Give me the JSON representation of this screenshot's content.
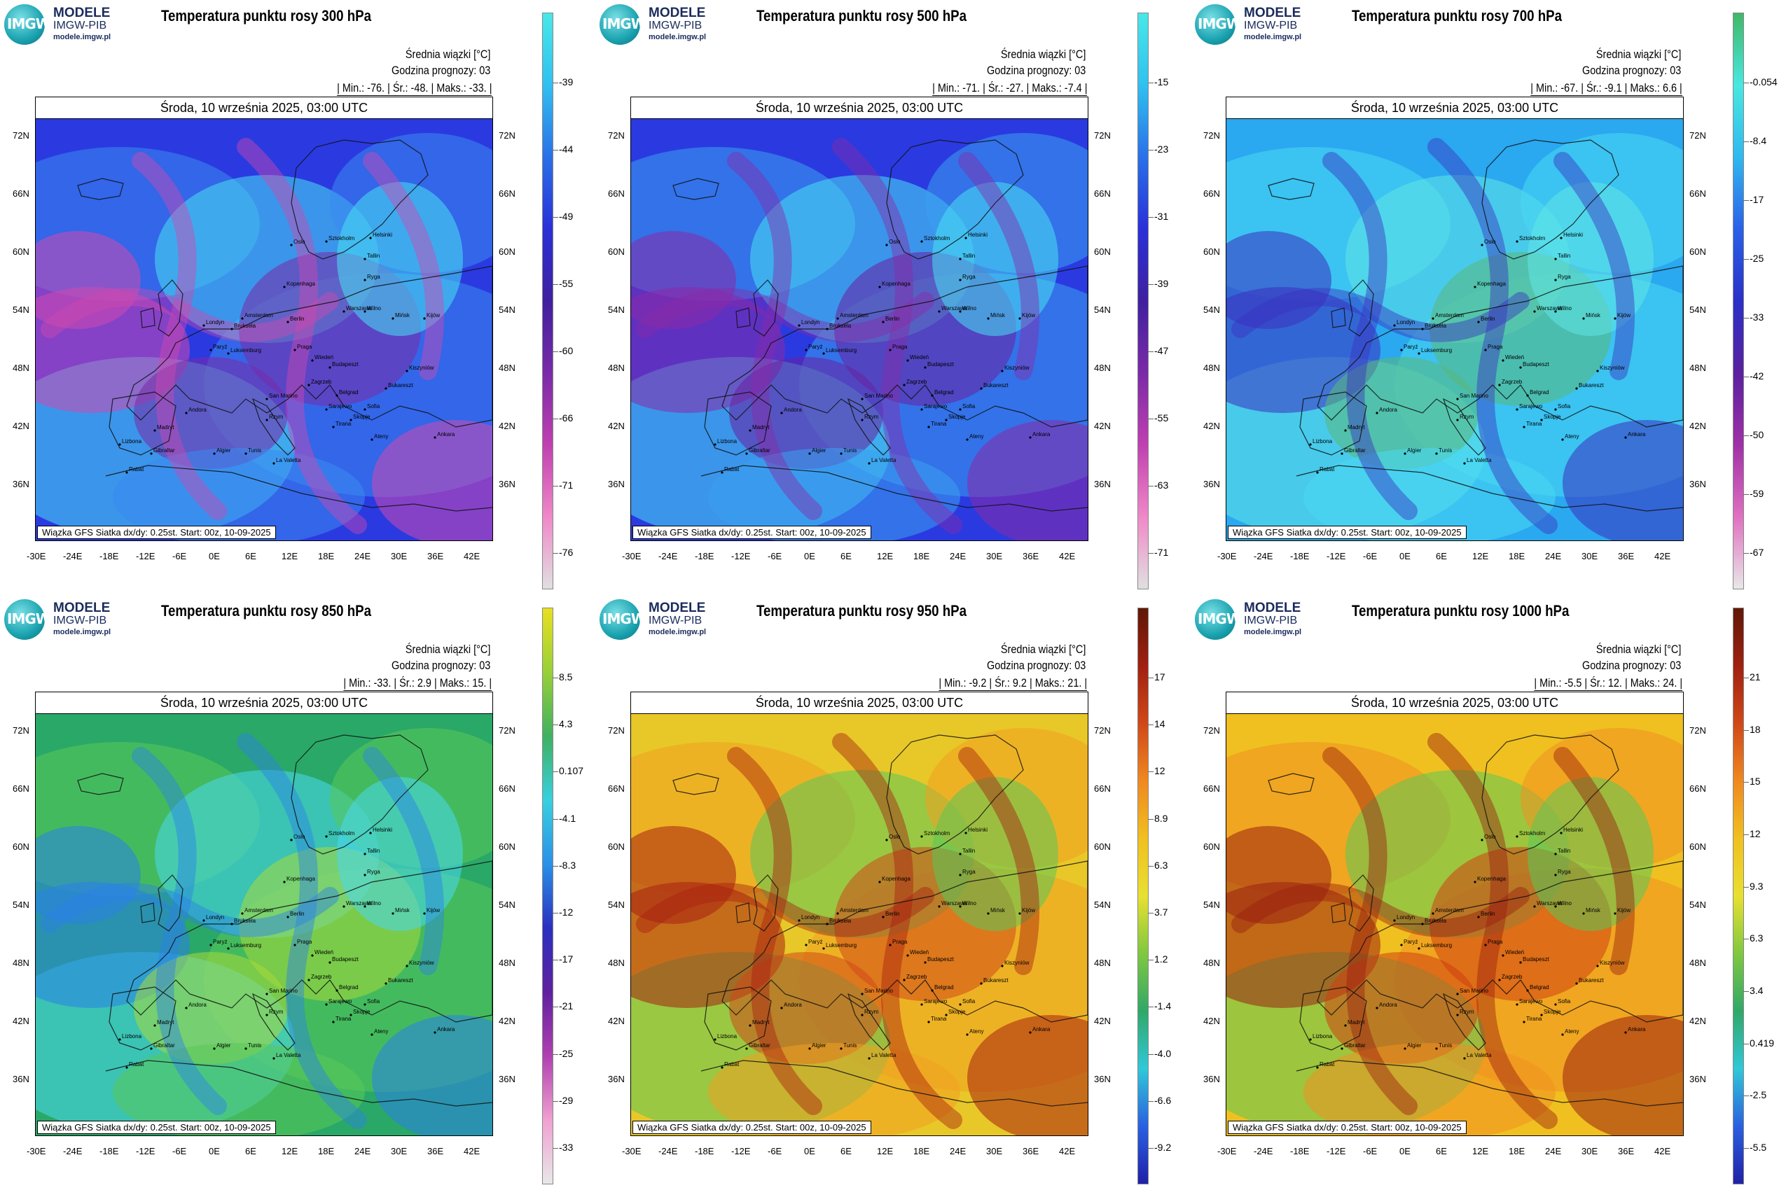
{
  "logo": {
    "badge": "IMGW",
    "line1": "MODELE",
    "line2": "IMGW-PIB",
    "line3": "modele.imgw.pl"
  },
  "common": {
    "info_line1": "Średnia wiązki [°C]",
    "info_line2": "Godzina prognozy: 03",
    "date": "Środa, 10 września 2025, 03:00 UTC",
    "footer": "Wiązka GFS Siatka dx/dy: 0.25st. Start: 00z, 10-09-2025",
    "lat_labels": [
      "72N",
      "66N",
      "60N",
      "54N",
      "48N",
      "42N",
      "36N"
    ],
    "lon_labels": [
      "-30E",
      "-24E",
      "-18E",
      "-12E",
      "-6E",
      "0E",
      "6E",
      "12E",
      "18E",
      "24E",
      "30E",
      "36E",
      "42E"
    ],
    "map_labels": [
      "Oslo",
      "Sztokholm",
      "Helsinki",
      "Tallin",
      "Ryga",
      "Wilno",
      "Mińsk",
      "Warszawa",
      "Kopenhaga",
      "Amsterdam",
      "Bruksela",
      "Londyn",
      "Paryż",
      "Berlin",
      "Praga",
      "Wiedeń",
      "Budapeszt",
      "Kijów",
      "Kiszyniów",
      "Bukareszt",
      "Belgrad",
      "Sofia",
      "Zagrzeb",
      "Rzym",
      "Madryt",
      "Lizbona",
      "Andora",
      "Tunis",
      "Algier",
      "Rabat",
      "Gibraltar",
      "La Valetta",
      "Ateny",
      "Ankara",
      "Skopje",
      "Tirana",
      "San Marino",
      "Luksemburg",
      "Sarajewo"
    ]
  },
  "panels": [
    {
      "title": "Temperatura punktu rosy 300 hPa",
      "stats": "| Min.:   -76. | Śr.:   -48. | Maks.:   -33. |",
      "colorbar_ticks": [
        "-39",
        "-44",
        "-49",
        "-55",
        "-60",
        "-66",
        "-71",
        "-76"
      ],
      "palette": "cold",
      "colors": {
        "base": "#2a3ae0",
        "mid": "#3a8af0",
        "light": "#48e0f2",
        "accent": "#7a2aa8",
        "accent2": "#d048b0"
      }
    },
    {
      "title": "Temperatura punktu rosy 500 hPa",
      "stats": "| Min.:   -71. | Śr.:   -27. | Maks.:   -7.4 |",
      "colorbar_ticks": [
        "-15",
        "-23",
        "-31",
        "-39",
        "-47",
        "-55",
        "-63",
        "-71"
      ],
      "palette": "cold",
      "colors": {
        "base": "#2a3ae0",
        "mid": "#3aa0f0",
        "light": "#48e0f2",
        "accent": "#6a20a0",
        "accent2": "#8a2aa8"
      }
    },
    {
      "title": "Temperatura punktu rosy 700 hPa",
      "stats": "| Min.:   -67. | Śr.:   -9.1 | Maks.:   6.6 |",
      "colorbar_ticks": [
        "-0.054",
        "-8.4",
        "-17",
        "-25",
        "-33",
        "-42",
        "-50",
        "-59",
        "-67"
      ],
      "palette": "cool",
      "colors": {
        "base": "#2aa8f0",
        "mid": "#48d8f2",
        "light": "#60e6e6",
        "accent": "#5ab878",
        "accent2": "#3a30c0"
      }
    },
    {
      "title": "Temperatura punktu rosy 850 hPa",
      "stats": "| Min.:   -33. | Śr.:   2.9 | Maks.:   15. |",
      "colorbar_ticks": [
        "8.5",
        "4.3",
        "0.107",
        "-4.1",
        "-8.3",
        "-12",
        "-17",
        "-21",
        "-25",
        "-29",
        "-33"
      ],
      "palette": "mixed",
      "colors": {
        "base": "#2aa868",
        "mid": "#5ac858",
        "light": "#48d8f0",
        "accent": "#a8d838",
        "accent2": "#2a80e8"
      }
    },
    {
      "title": "Temperatura punktu rosy 950 hPa",
      "stats": "| Min.:   -9.2 | Śr.:   9.2 | Maks.:   21. |",
      "colorbar_ticks": [
        "17",
        "14",
        "12",
        "8.9",
        "6.3",
        "3.7",
        "1.2",
        "-1.4",
        "-4.0",
        "-6.6",
        "-9.2"
      ],
      "palette": "warm",
      "colors": {
        "base": "#e8c828",
        "mid": "#f0a020",
        "light": "#5ac858",
        "accent": "#d04818",
        "accent2": "#a82010"
      }
    },
    {
      "title": "Temperatura punktu rosy 1000 hPa",
      "stats": "| Min.:   -5.5 | Śr.:   12. | Maks.:   24. |",
      "colorbar_ticks": [
        "21",
        "18",
        "15",
        "12",
        "9.3",
        "6.3",
        "3.4",
        "0.419",
        "-2.5",
        "-5.5"
      ],
      "palette": "warm",
      "colors": {
        "base": "#f0c020",
        "mid": "#f09020",
        "light": "#5ac858",
        "accent": "#d04010",
        "accent2": "#9a2010"
      }
    }
  ]
}
